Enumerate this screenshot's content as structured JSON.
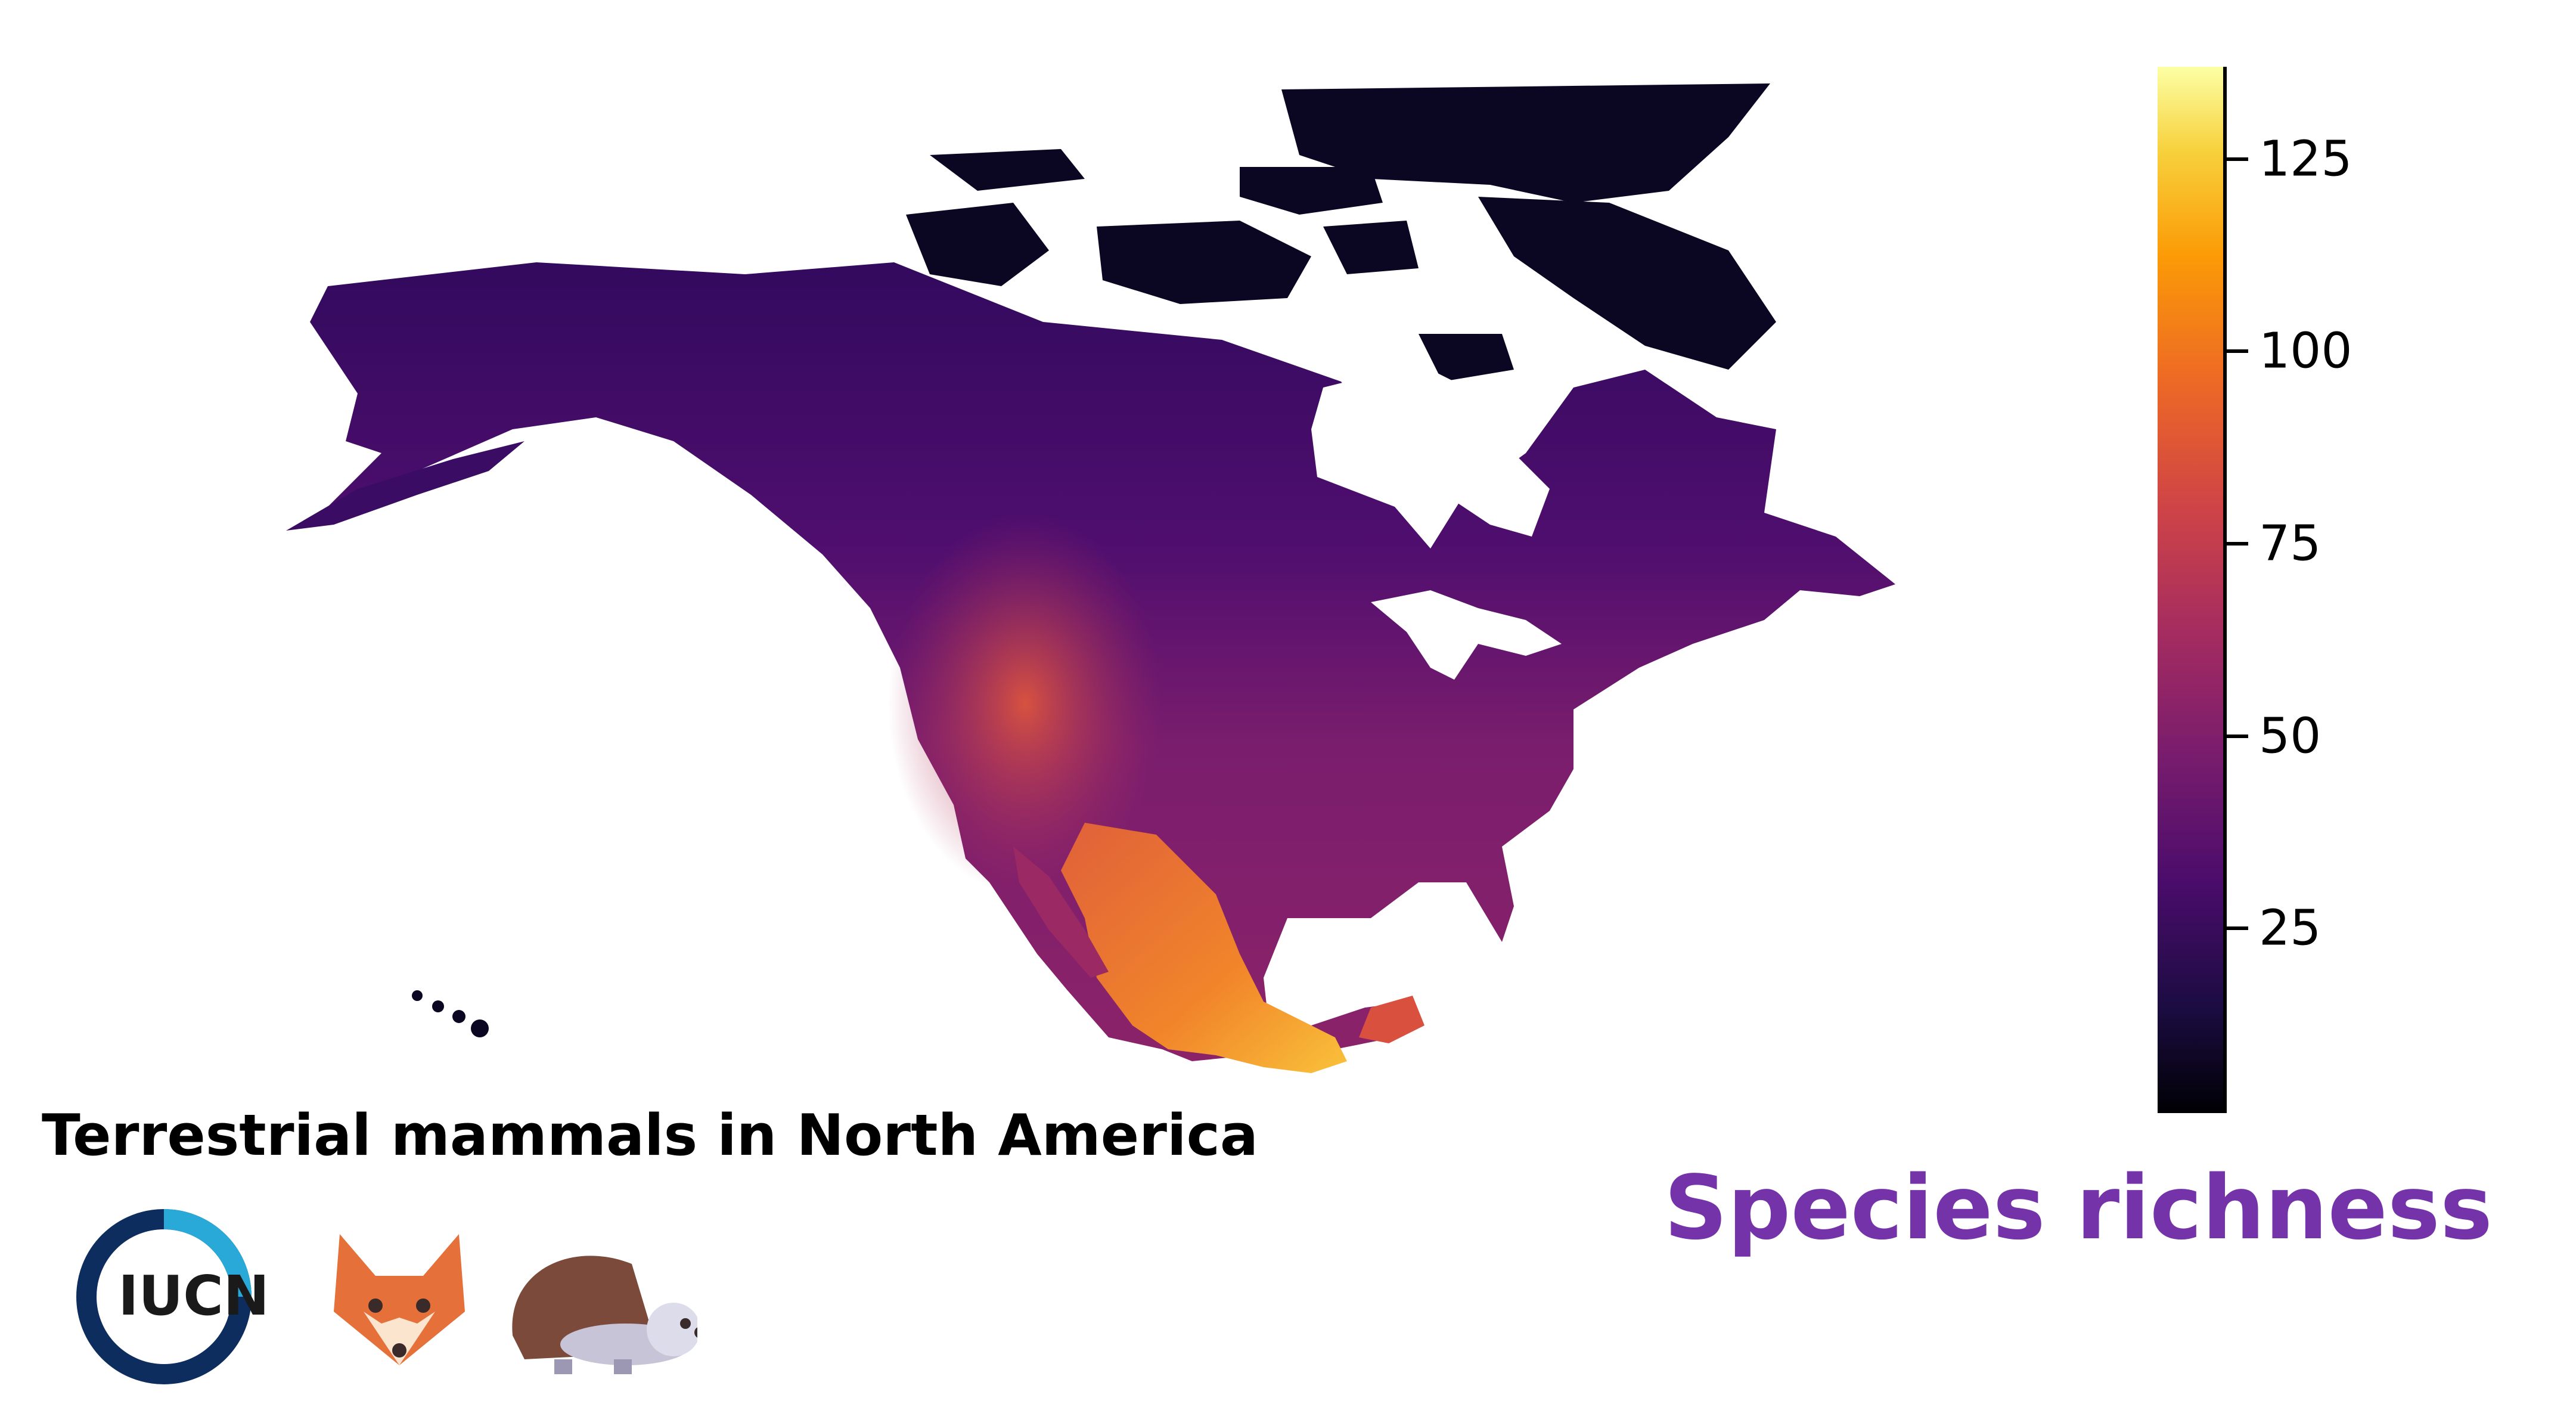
{
  "map": {
    "title": "Terrestrial mammals in North America",
    "legend_title": "Species richness",
    "region": "North America",
    "color_scale": {
      "name": "inferno",
      "min": 1,
      "max": 137,
      "ticks": [
        25,
        50,
        75,
        100,
        125
      ],
      "colors": [
        "#000004",
        "#1b0c41",
        "#4a0c6b",
        "#781c6d",
        "#a52c60",
        "#cf4446",
        "#ed6925",
        "#fb9b06",
        "#f7d13d",
        "#fcffa4"
      ]
    },
    "logos": {
      "org_text": "IUCN",
      "org_ring_colors": [
        "#0c2d5e",
        "#29a9d8"
      ],
      "icons": [
        "iucn-logo",
        "fox-icon",
        "hedgehog-icon"
      ]
    }
  }
}
